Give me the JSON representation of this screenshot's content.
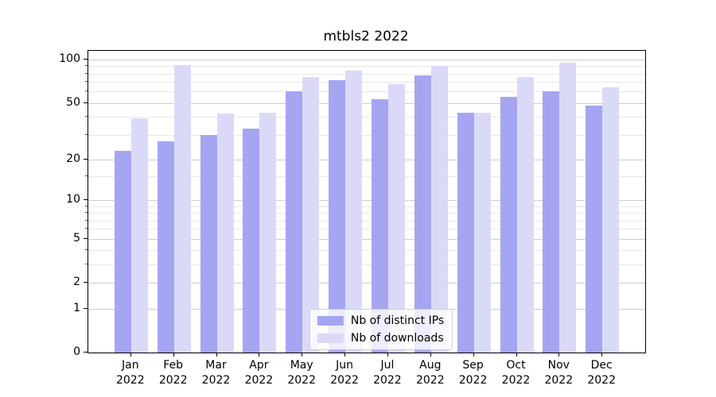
{
  "chart_data": {
    "type": "bar",
    "title": "mtbls2 2022",
    "categories": [
      "Jan 2022",
      "Feb 2022",
      "Mar 2022",
      "Apr 2022",
      "May 2022",
      "Jun 2022",
      "Jul 2022",
      "Aug 2022",
      "Sep 2022",
      "Oct 2022",
      "Nov 2022",
      "Dec 2022"
    ],
    "series": [
      {
        "name": "Nb of distinct IPs",
        "color": "#a5a5f2",
        "values": [
          23,
          27,
          30,
          33,
          60,
          72,
          53,
          78,
          43,
          55,
          60,
          48
        ]
      },
      {
        "name": "Nb of downloads",
        "color": "#dadaf8",
        "values": [
          39,
          92,
          42,
          43,
          76,
          84,
          68,
          90,
          43,
          76,
          95,
          64
        ]
      }
    ],
    "yscale": "log1p",
    "yticks": [
      0,
      1,
      2,
      5,
      10,
      20,
      50,
      100
    ],
    "minor_yticks": [
      3,
      4,
      6,
      7,
      8,
      9,
      15,
      30,
      40,
      60,
      70,
      80,
      90
    ],
    "ylim": [
      0,
      115
    ],
    "xlabel": "",
    "ylabel": "",
    "grid": true,
    "legend_position": "lower center"
  }
}
